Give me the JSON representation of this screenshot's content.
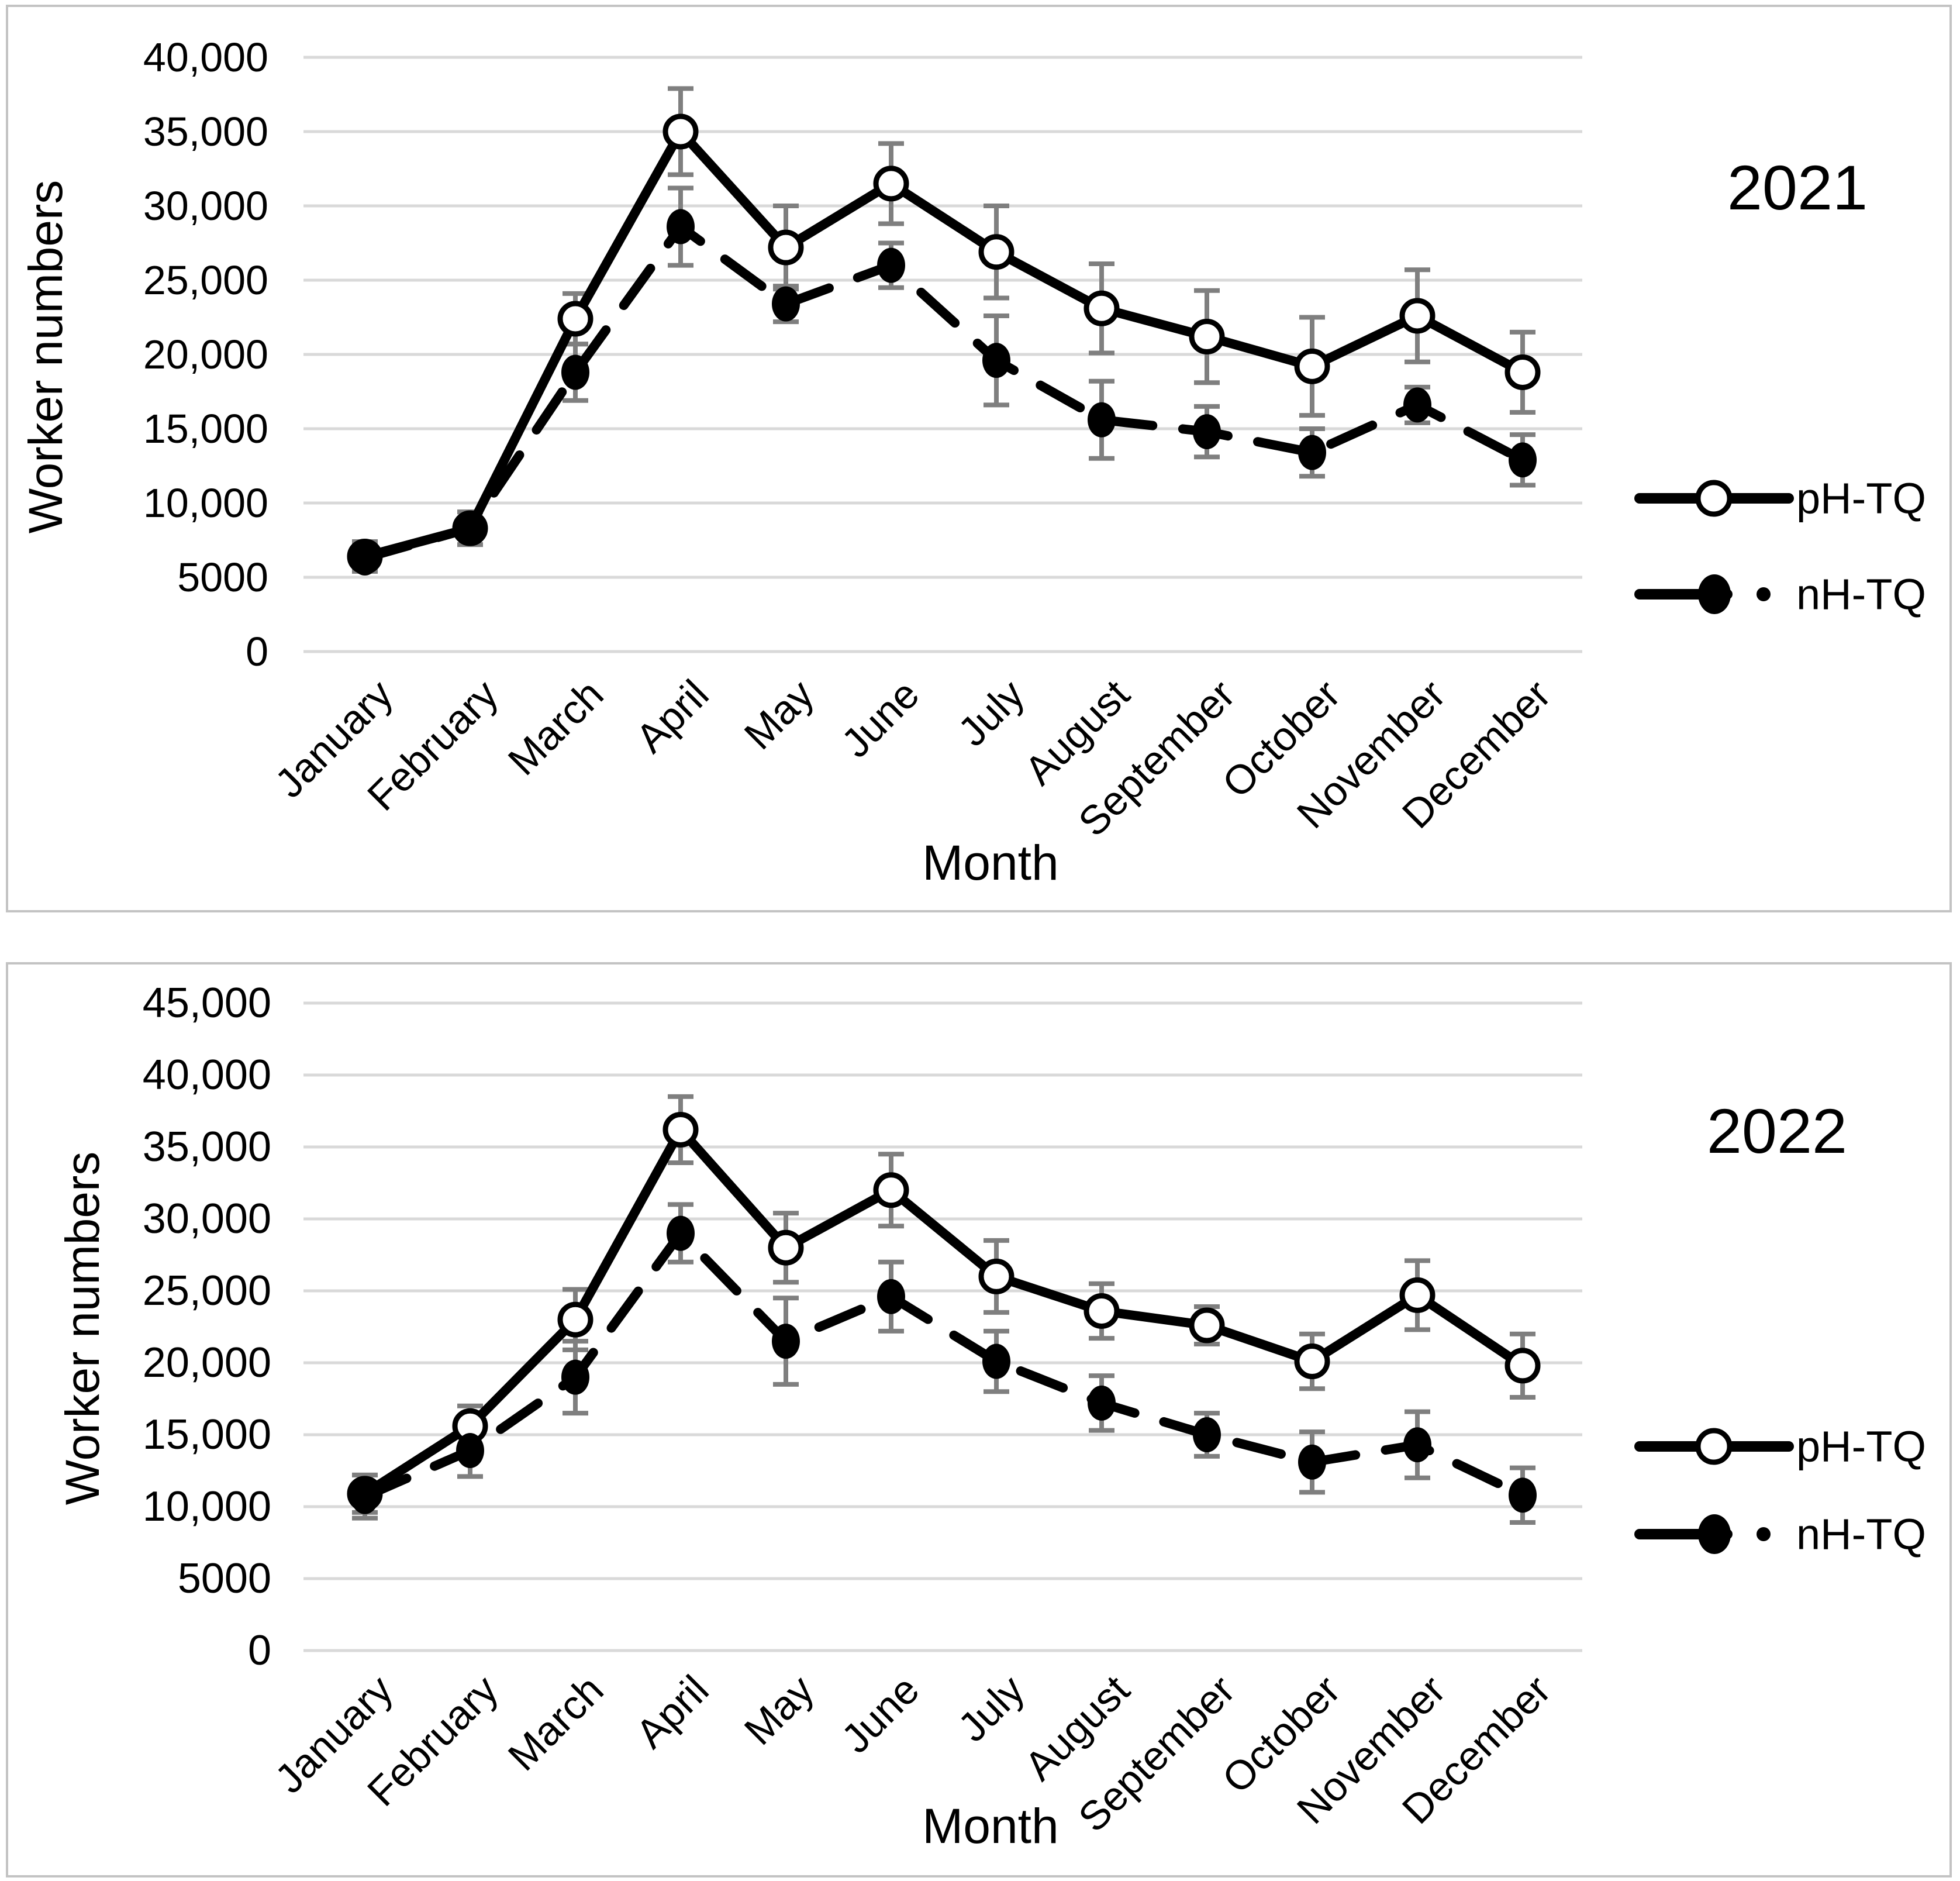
{
  "colors": {
    "series_line": "#000000",
    "marker_open_fill": "#ffffff",
    "marker_filled_fill": "#000000",
    "error_bar": "#7f7f7f",
    "gridline": "#d9d9d9",
    "panel_border": "#c3c3c3",
    "background": "#ffffff",
    "text": "#000000"
  },
  "chart_data": [
    {
      "type": "line",
      "year_label": "2021",
      "xlabel": "Month",
      "ylabel": "Worker numbers",
      "ylim": [
        0,
        40000
      ],
      "ytick_step": 5000,
      "grid": "horizontal",
      "legend_position": "right",
      "yticks": [
        {
          "label": "40,000",
          "value": 40000
        },
        {
          "label": "35,000",
          "value": 35000
        },
        {
          "label": "30,000",
          "value": 30000
        },
        {
          "label": "25,000",
          "value": 25000
        },
        {
          "label": "20,000",
          "value": 20000
        },
        {
          "label": "15,000",
          "value": 15000
        },
        {
          "label": "10,000",
          "value": 10000
        },
        {
          "label": "5000",
          "value": 5000
        },
        {
          "label": "0",
          "value": 0
        }
      ],
      "categories": [
        "January",
        "February",
        "March",
        "April",
        "May",
        "June",
        "July",
        "August",
        "September",
        "October",
        "November",
        "December"
      ],
      "series": [
        {
          "name": "pH-TQ",
          "marker": "open-circle",
          "line_style": "solid",
          "values": [
            6400,
            8300,
            22400,
            35000,
            27200,
            31500,
            26900,
            23100,
            21200,
            19200,
            22600,
            18800
          ],
          "errors": [
            1000,
            1100,
            1700,
            2900,
            2800,
            2700,
            3100,
            3000,
            3100,
            3300,
            3100,
            2700
          ]
        },
        {
          "name": "nH-TQ",
          "marker": "filled-circle",
          "line_style": "dashed",
          "values": [
            6300,
            8300,
            18800,
            28600,
            23400,
            26000,
            19600,
            15600,
            14800,
            13400,
            16600,
            12900
          ],
          "errors": [
            900,
            1100,
            1900,
            2600,
            1200,
            1500,
            3000,
            2600,
            1700,
            1600,
            1200,
            1700
          ]
        }
      ]
    },
    {
      "type": "line",
      "year_label": "2022",
      "xlabel": "Month",
      "ylabel": "Worker numbers",
      "ylim": [
        0,
        45000
      ],
      "ytick_step": 5000,
      "grid": "horizontal",
      "legend_position": "right",
      "yticks": [
        {
          "label": "45,000",
          "value": 45000
        },
        {
          "label": "40,000",
          "value": 40000
        },
        {
          "label": "35,000",
          "value": 35000
        },
        {
          "label": "30,000",
          "value": 30000
        },
        {
          "label": "25,000",
          "value": 25000
        },
        {
          "label": "20,000",
          "value": 20000
        },
        {
          "label": "15,000",
          "value": 15000
        },
        {
          "label": "10,000",
          "value": 10000
        },
        {
          "label": "5000",
          "value": 5000
        },
        {
          "label": "0",
          "value": 0
        }
      ],
      "categories": [
        "January",
        "February",
        "March",
        "April",
        "May",
        "June",
        "July",
        "August",
        "September",
        "October",
        "November",
        "December"
      ],
      "series": [
        {
          "name": "pH-TQ",
          "marker": "open-circle",
          "line_style": "solid",
          "values": [
            10900,
            15600,
            23000,
            36200,
            28000,
            32000,
            26000,
            23600,
            22600,
            20100,
            24700,
            19800
          ],
          "errors": [
            1300,
            1400,
            2100,
            2300,
            2400,
            2500,
            2500,
            1900,
            1300,
            1900,
            2400,
            2200
          ]
        },
        {
          "name": "nH-TQ",
          "marker": "filled-circle",
          "line_style": "dashed",
          "values": [
            10700,
            13900,
            19000,
            29000,
            21500,
            24600,
            20100,
            17200,
            15000,
            13100,
            14300,
            10800
          ],
          "errors": [
            1500,
            1800,
            2500,
            2000,
            3000,
            2400,
            2100,
            1900,
            1500,
            2100,
            2300,
            1900
          ]
        }
      ]
    }
  ]
}
